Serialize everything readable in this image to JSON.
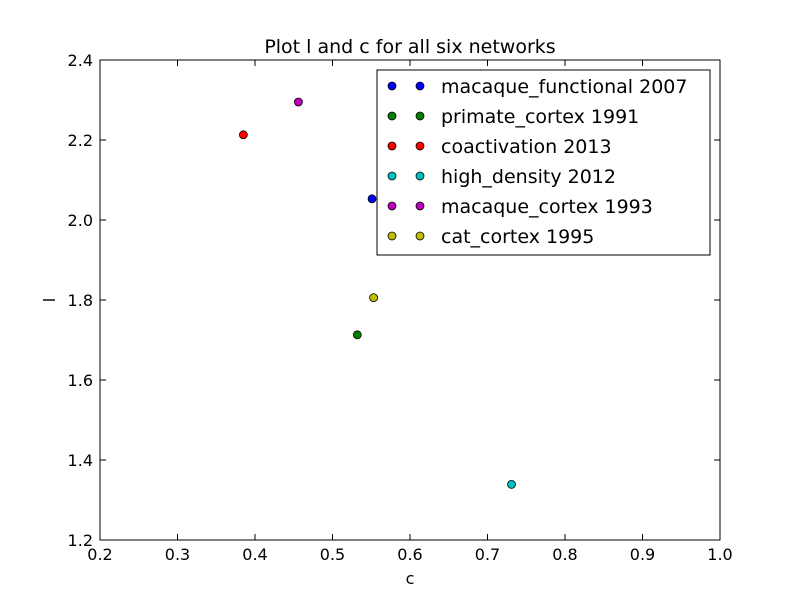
{
  "chart_data": {
    "type": "scatter",
    "title": "Plot l and c for all six networks",
    "xlabel": "c",
    "ylabel": "l",
    "xlim": [
      0.2,
      1.0
    ],
    "ylim": [
      1.2,
      2.4
    ],
    "xticks": [
      0.2,
      0.3,
      0.4,
      0.5,
      0.6,
      0.7,
      0.8,
      0.9,
      1.0
    ],
    "xtick_labels": [
      "0.2",
      "0.3",
      "0.4",
      "0.5",
      "0.6",
      "0.7",
      "0.8",
      "0.9",
      "1.0"
    ],
    "yticks": [
      1.2,
      1.4,
      1.6,
      1.8,
      2.0,
      2.2,
      2.4
    ],
    "ytick_labels": [
      "1.2",
      "1.4",
      "1.6",
      "1.8",
      "2.0",
      "2.2",
      "2.4"
    ],
    "grid": false,
    "legend_position": "top-right",
    "series": [
      {
        "name": "macaque_functional 2007",
        "color": "#0000ff",
        "x": [
          0.551
        ],
        "y": [
          2.053
        ]
      },
      {
        "name": "primate_cortex 1991",
        "color": "#007f00",
        "x": [
          0.532
        ],
        "y": [
          1.713
        ]
      },
      {
        "name": "coactivation 2013",
        "color": "#ff0000",
        "x": [
          0.385
        ],
        "y": [
          2.213
        ]
      },
      {
        "name": "high_density 2012",
        "color": "#00bfbf",
        "x": [
          0.731
        ],
        "y": [
          1.339
        ]
      },
      {
        "name": "macaque_cortex 1993",
        "color": "#bf00bf",
        "x": [
          0.456
        ],
        "y": [
          2.295
        ]
      },
      {
        "name": "cat_cortex 1995",
        "color": "#bfbf00",
        "x": [
          0.553
        ],
        "y": [
          1.806
        ]
      }
    ]
  }
}
